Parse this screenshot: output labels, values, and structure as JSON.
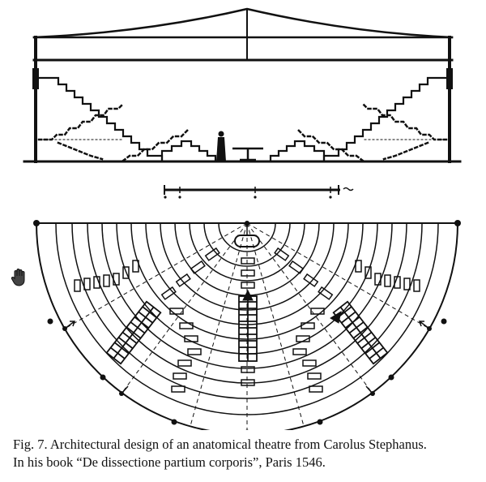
{
  "caption": {
    "line1": "Fig. 7. Architectural design of an anatomical theatre from Carolus Stephanus.",
    "line2": "In his book “De dissectione partium corporis”, Paris 1546."
  },
  "icons": {
    "cursor": "hand-cursor-icon"
  },
  "colors": {
    "ink": "#111111",
    "background": "#ffffff"
  }
}
